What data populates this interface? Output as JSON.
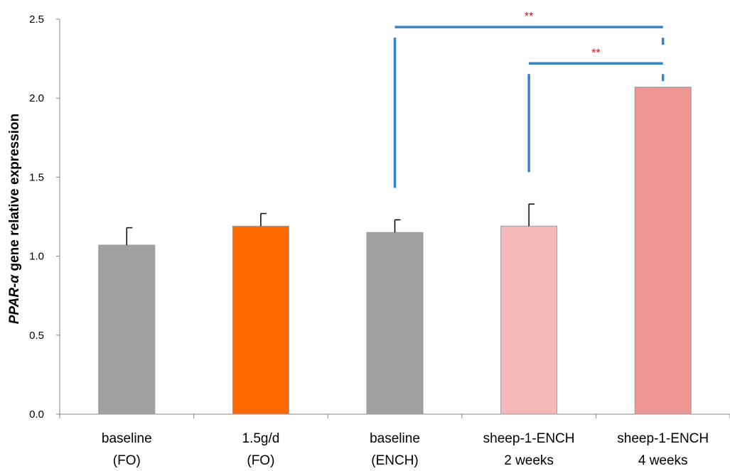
{
  "chart_data": {
    "type": "bar",
    "title": "",
    "ylabel_italic": "PPAR-α",
    "ylabel_rest": " gene relative expression",
    "xlabel": "",
    "ylim": [
      0,
      2.5
    ],
    "yticks": [
      "0.0",
      "0.5",
      "1.0",
      "1.5",
      "2.0",
      "2.5"
    ],
    "grid": false,
    "legend": "none",
    "categories": [
      {
        "line1": "baseline",
        "line2": "(FO)"
      },
      {
        "line1": "1.5g/d",
        "line2": "(FO)"
      },
      {
        "line1": "baseline",
        "line2": "(ENCH)"
      },
      {
        "line1": "sheep-1-ENCH",
        "line2": "2 weeks"
      },
      {
        "line1": "sheep-1-ENCH",
        "line2": "4 weeks"
      }
    ],
    "values": [
      1.07,
      1.19,
      1.15,
      1.19,
      2.07
    ],
    "errors": [
      0.11,
      0.08,
      0.08,
      0.14,
      0
    ],
    "colors": [
      "#a0a0a0",
      "#ff6a00",
      "#a0a0a0",
      "#f4b8b8",
      "#ee9694"
    ],
    "significance": [
      {
        "from": 2,
        "to": 4,
        "label": "**",
        "y": 2.45
      },
      {
        "from": 3,
        "to": 4,
        "label": "**",
        "y": 2.22
      }
    ],
    "bracket_color": "#3585c6",
    "significance_color": "#ff0000"
  }
}
